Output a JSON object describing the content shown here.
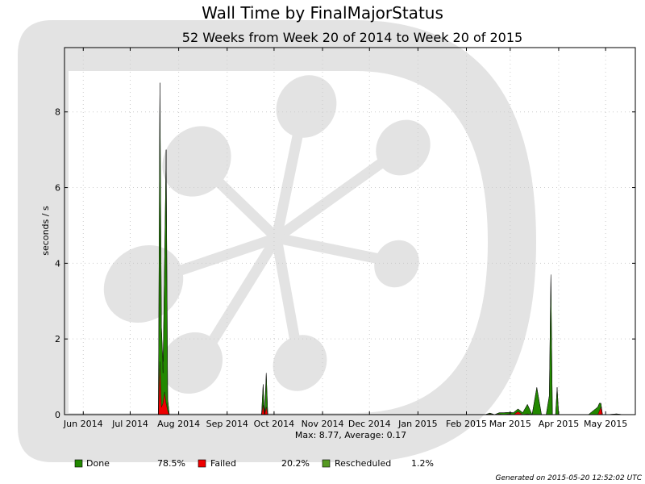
{
  "chart_data": {
    "type": "area",
    "title": "Wall Time by FinalMajorStatus",
    "subtitle": "52 Weeks from Week 20 of 2014 to Week 20 of 2015",
    "xlabel": "",
    "ylabel": "seconds / s",
    "ylim": [
      0,
      9.7
    ],
    "yticks": [
      0,
      2,
      4,
      6,
      8
    ],
    "xlim": [
      "2014-05-20",
      "2015-05-20"
    ],
    "xticks": [
      {
        "date": "2014-06-01",
        "label": "Jun 2014"
      },
      {
        "date": "2014-07-01",
        "label": "Jul 2014"
      },
      {
        "date": "2014-08-01",
        "label": "Aug 2014"
      },
      {
        "date": "2014-09-01",
        "label": "Sep 2014"
      },
      {
        "date": "2014-10-01",
        "label": "Oct 2014"
      },
      {
        "date": "2014-11-01",
        "label": "Nov 2014"
      },
      {
        "date": "2014-12-01",
        "label": "Dec 2014"
      },
      {
        "date": "2015-01-01",
        "label": "Jan 2015"
      },
      {
        "date": "2015-02-01",
        "label": "Feb 2015"
      },
      {
        "date": "2015-03-01",
        "label": "Mar 2015"
      },
      {
        "date": "2015-04-01",
        "label": "Apr 2015"
      },
      {
        "date": "2015-05-01",
        "label": "May 2015"
      }
    ],
    "grid": true,
    "stacked": true,
    "stats_text": "Max: 8.77, Average: 0.17",
    "x": [
      "2014-07-19",
      "2014-07-20",
      "2014-07-21",
      "2014-07-22",
      "2014-07-23",
      "2014-07-24",
      "2014-07-25",
      "2014-07-26",
      "2014-09-23",
      "2014-09-24",
      "2014-09-25",
      "2014-09-26",
      "2014-09-27",
      "2014-09-28",
      "2014-09-29",
      "2015-02-13",
      "2015-02-16",
      "2015-02-19",
      "2015-02-22",
      "2015-02-25",
      "2015-02-28",
      "2015-03-03",
      "2015-03-06",
      "2015-03-09",
      "2015-03-12",
      "2015-03-15",
      "2015-03-18",
      "2015-03-21",
      "2015-03-24",
      "2015-03-26",
      "2015-03-27",
      "2015-03-28",
      "2015-03-30",
      "2015-03-31",
      "2015-04-01",
      "2015-04-02",
      "2015-04-05",
      "2015-04-08",
      "2015-04-11",
      "2015-04-12",
      "2015-04-13",
      "2015-04-14",
      "2015-04-17",
      "2015-04-20",
      "2015-04-26",
      "2015-04-27",
      "2015-04-28",
      "2015-04-29",
      "2015-05-02",
      "2015-05-08",
      "2015-05-12",
      "2015-05-16",
      "2015-05-20"
    ],
    "series": [
      {
        "name": "Failed",
        "color": "#ee0000",
        "values": [
          0,
          1.4,
          0.2,
          0.3,
          0.6,
          0.3,
          0.1,
          0,
          0,
          0.25,
          0,
          0.2,
          0,
          0,
          0,
          0,
          0.02,
          0,
          0.02,
          0,
          0.02,
          0,
          0.08,
          0,
          0.02,
          0,
          0,
          0,
          0,
          0,
          0,
          0,
          0,
          0,
          0,
          0,
          0,
          0,
          0,
          0,
          0,
          0,
          0,
          0,
          0,
          0.1,
          0.2,
          0,
          0,
          0,
          0,
          0,
          0
        ]
      },
      {
        "name": "Done",
        "color": "#228800",
        "values": [
          0,
          7.37,
          2.1,
          0.8,
          3.4,
          6.7,
          0.3,
          0,
          0,
          0.55,
          0,
          0.9,
          0,
          0,
          0,
          0,
          0.02,
          0,
          0.03,
          0.05,
          0.04,
          0.05,
          0.07,
          0.05,
          0.25,
          0,
          0.72,
          0,
          0,
          0.5,
          3.7,
          0,
          0,
          0.72,
          0,
          0,
          0,
          0,
          0,
          0,
          0,
          0,
          0,
          0,
          0.2,
          0.2,
          0.1,
          0,
          0,
          0.02,
          0,
          0,
          0
        ]
      },
      {
        "name": "Rescheduled",
        "color": "#559922",
        "values": [
          0,
          0,
          0,
          0.3,
          0,
          0,
          0,
          0,
          0,
          0,
          0,
          0,
          0,
          0,
          0,
          0,
          0,
          0,
          0,
          0,
          0,
          0,
          0,
          0,
          0,
          0,
          0,
          0,
          0,
          0,
          0,
          0,
          0,
          0,
          0,
          0,
          0,
          0,
          0,
          0,
          0,
          0,
          0,
          0,
          0,
          0,
          0,
          0,
          0,
          0,
          0,
          0,
          0
        ]
      }
    ],
    "legend": [
      {
        "name": "Done",
        "color": "#228800",
        "percent": "78.5%"
      },
      {
        "name": "Failed",
        "color": "#ee0000",
        "percent": "20.2%"
      },
      {
        "name": "Rescheduled",
        "color": "#559922",
        "percent": "1.2%"
      }
    ],
    "legend_position": "bottom"
  },
  "footer": "Generated on 2015-05-20 12:52:02 UTC"
}
